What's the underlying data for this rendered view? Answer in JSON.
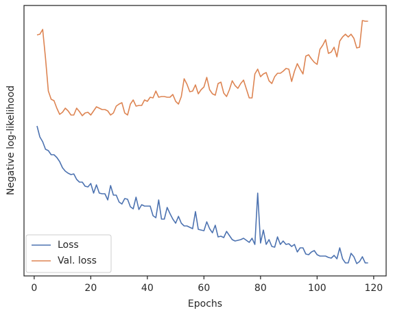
{
  "chart_data": {
    "type": "line",
    "xlabel": "Epochs",
    "ylabel": "Negative log-likelihood",
    "x": [
      1,
      2,
      3,
      4,
      5,
      6,
      7,
      8,
      9,
      10,
      11,
      12,
      13,
      14,
      15,
      16,
      17,
      18,
      19,
      20,
      21,
      22,
      23,
      24,
      25,
      26,
      27,
      28,
      29,
      30,
      31,
      32,
      33,
      34,
      35,
      36,
      37,
      38,
      39,
      40,
      41,
      42,
      43,
      44,
      45,
      46,
      47,
      48,
      49,
      50,
      51,
      52,
      53,
      54,
      55,
      56,
      57,
      58,
      59,
      60,
      61,
      62,
      63,
      64,
      65,
      66,
      67,
      68,
      69,
      70,
      71,
      72,
      73,
      74,
      75,
      76,
      77,
      78,
      79,
      80,
      81,
      82,
      83,
      84,
      85,
      86,
      87,
      88,
      89,
      90,
      91,
      92,
      93,
      94,
      95,
      96,
      97,
      98,
      99,
      100,
      101,
      102,
      103,
      104,
      105,
      106,
      107,
      108,
      109,
      110,
      111,
      112,
      113,
      114,
      115,
      116,
      117,
      118
    ],
    "series": [
      {
        "name": "Loss",
        "color": "#4c72b0",
        "values": [
          219,
          203,
          196,
          185,
          183,
          177,
          177,
          173,
          167,
          158,
          153,
          150,
          148,
          149,
          141,
          137,
          137,
          131,
          130,
          135,
          121,
          133,
          121,
          120,
          120,
          111,
          132,
          118,
          118,
          108,
          105,
          113,
          112,
          101,
          98,
          115,
          97,
          104,
          102,
          102,
          102,
          88,
          85,
          111,
          83,
          83,
          100,
          91,
          83,
          77,
          87,
          77,
          73,
          73,
          71,
          69,
          94,
          68,
          67,
          66,
          79,
          69,
          63,
          74,
          57,
          58,
          56,
          65,
          59,
          53,
          51,
          52,
          53,
          55,
          52,
          49,
          55,
          46,
          121,
          48,
          67,
          46,
          53,
          43,
          42,
          57,
          46,
          51,
          46,
          47,
          43,
          46,
          35,
          41,
          41,
          32,
          31,
          35,
          37,
          31,
          29,
          29,
          29,
          27,
          26,
          30,
          25,
          41,
          25,
          19,
          19,
          33,
          28,
          18,
          21,
          28,
          19,
          19
        ]
      },
      {
        "name": "Val. loss",
        "color": "#dd8452",
        "values": [
          352,
          353,
          360,
          318,
          270,
          258,
          256,
          245,
          236,
          239,
          245,
          241,
          235,
          235,
          245,
          240,
          234,
          238,
          239,
          235,
          241,
          247,
          245,
          243,
          243,
          241,
          235,
          238,
          248,
          251,
          253,
          238,
          235,
          251,
          257,
          248,
          249,
          249,
          257,
          255,
          261,
          260,
          270,
          261,
          262,
          262,
          261,
          261,
          265,
          255,
          251,
          262,
          288,
          280,
          269,
          270,
          279,
          266,
          272,
          276,
          290,
          272,
          266,
          264,
          281,
          283,
          267,
          262,
          272,
          285,
          278,
          274,
          281,
          286,
          273,
          260,
          260,
          295,
          302,
          291,
          295,
          297,
          285,
          281,
          291,
          296,
          296,
          299,
          303,
          302,
          284,
          299,
          310,
          302,
          295,
          321,
          323,
          317,
          312,
          309,
          331,
          337,
          345,
          325,
          327,
          334,
          320,
          343,
          349,
          353,
          349,
          353,
          347,
          333,
          334,
          373,
          372,
          372
        ]
      }
    ],
    "xlim": [
      -3.6,
      124.4
    ],
    "xticks": [
      0,
      20,
      40,
      60,
      80,
      100,
      120
    ],
    "ylim": [
      0,
      395
    ],
    "legend": "lower left"
  }
}
